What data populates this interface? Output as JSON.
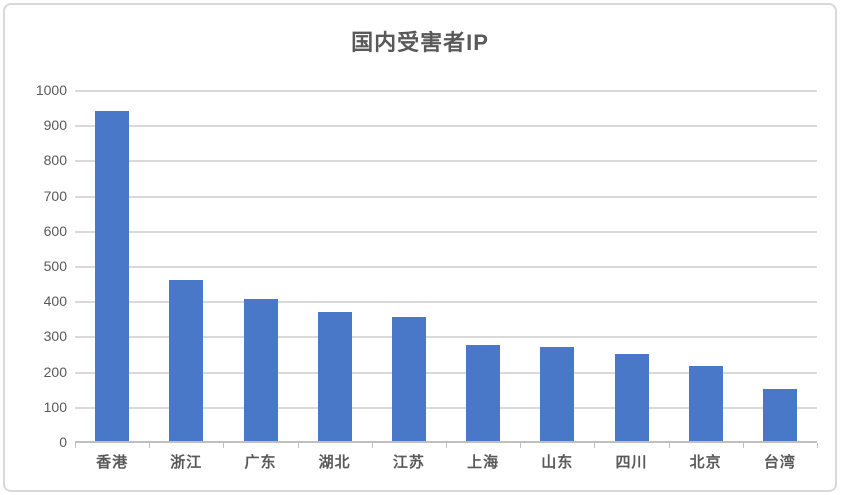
{
  "chart_data": {
    "type": "bar",
    "title": "国内受害者IP",
    "categories": [
      "香港",
      "浙江",
      "广东",
      "湖北",
      "江苏",
      "上海",
      "山东",
      "四川",
      "北京",
      "台湾"
    ],
    "values": [
      940,
      460,
      405,
      370,
      355,
      275,
      270,
      250,
      215,
      150
    ],
    "xlabel": "",
    "ylabel": "",
    "ylim": [
      0,
      1000
    ],
    "ytick_step": 100,
    "ytick_labels": [
      "0",
      "100",
      "200",
      "300",
      "400",
      "500",
      "600",
      "700",
      "800",
      "900",
      "1000"
    ],
    "grid": true,
    "legend": false,
    "colors": {
      "bar": "#4A78C8",
      "gridline": "#D9D9D9",
      "axis": "#BFBFBF",
      "text": "#595959",
      "frame_border": "#D9D9D9",
      "background": "#FFFFFF"
    }
  }
}
